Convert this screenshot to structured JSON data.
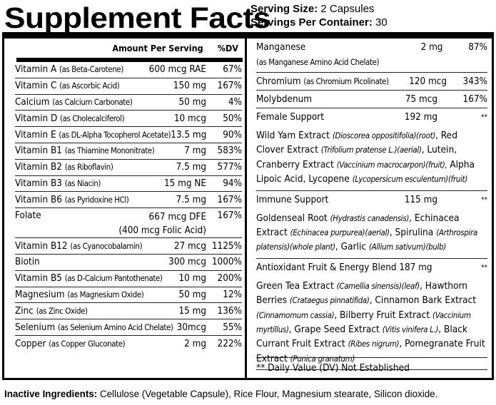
{
  "title": "Supplement Facts",
  "serving": {
    "size_label": "Serving Size:",
    "size": " 2 Capsules",
    "per_label": "Servings Per Container:",
    "per": " 30"
  },
  "header": {
    "amount": "Amount Per Serving",
    "dv": "%DV"
  },
  "left_rows": [
    {
      "name": "Vitamin A",
      "sub": "(as Beta-Carotene)",
      "amount": "600 mcg RAE",
      "dv": "67%"
    },
    {
      "name": "Vitamin C",
      "sub": "(as Ascorbic Acid)",
      "amount": "150 mg",
      "dv": "167%"
    },
    {
      "name": "Calcium",
      "sub": "(as Calcium Carbonate)",
      "amount": "50 mg",
      "dv": "4%"
    },
    {
      "name": "Vitamin D",
      "sub": "(as Cholecalciferol)",
      "amount": "10 mcg",
      "dv": "50%"
    },
    {
      "name": "Vitamin E",
      "sub": "(as DL-Alpha Tocopherol Acetate)",
      "amount": "13.5 mg",
      "dv": "90%"
    },
    {
      "name": "Vitamin B1",
      "sub": "(as Thiamine Mononitrate)",
      "amount": "7 mg",
      "dv": "583%"
    },
    {
      "name": "Vitamin B2",
      "sub": "(as Riboflavin)",
      "amount": "7.5 mg",
      "dv": "577%"
    },
    {
      "name": "Vitamin B3",
      "sub": "(as Niacin)",
      "amount": "15 mg NE",
      "dv": "94%"
    },
    {
      "name": "Vitamin B6",
      "sub": "(as Pyridoxine HCl)",
      "amount": "7.5 mg",
      "dv": "167%"
    },
    {
      "name": "Folate",
      "sub": "",
      "amount": "667 mcg DFE",
      "amount2": "(400 mcg Folic Acid)",
      "dv": "167%"
    },
    {
      "name": "Vitamin B12",
      "sub": "(as Cyanocobalamin)",
      "amount": "27 mcg",
      "dv": "1125%"
    },
    {
      "name": "Biotin",
      "sub": "",
      "amount": "300 mcg",
      "dv": "1000%"
    },
    {
      "name": "Vitamin B5",
      "sub": "(as D-Calcium Pantothenate)",
      "amount": "10 mg",
      "dv": "200%"
    },
    {
      "name": "Magnesium",
      "sub": "(as Magnesium Oxide)",
      "amount": "50 mg",
      "dv": "12%"
    },
    {
      "name": "Zinc",
      "sub": "(as Zinc Oxide)",
      "amount": "15 mg",
      "dv": "136%"
    },
    {
      "name": "Selenium",
      "sub": "(as Selenium Amino Acid Chelate)",
      "amount": "30mcg",
      "dv": "55%"
    },
    {
      "name": "Copper",
      "sub": "(as Copper Gluconate)",
      "amount": "2 mg",
      "dv": "222%"
    }
  ],
  "right_blocks": [
    {
      "name": "Manganese",
      "sub": "(as Manganese Amino Acid Chelate)",
      "amount": "2 mg",
      "dv": "87%",
      "two": true
    },
    {
      "name": "Chromium",
      "sub": "(as Chromium Picolinate)",
      "amount": "120 mcg",
      "dv": "343%"
    },
    {
      "name": "Molybdenum",
      "sub": "",
      "amount": "75 mcg",
      "dv": "167%"
    },
    {
      "name": "Female Support",
      "sub": "",
      "amount": "192 mg",
      "dv": "**",
      "desc": [
        {
          "t": "Wild Yam Extract "
        },
        {
          "t": "(Dioscorea oppositifolia)(root)",
          "i": true
        },
        {
          "t": ", Red Clover Extract "
        },
        {
          "t": "(Trifolium pratense L.)(aerial)",
          "i": true
        },
        {
          "t": ", Lutein, Cranberry Extract "
        },
        {
          "t": "(Vaccinium macrocarpon)(fruit),",
          "i": true
        },
        {
          "t": " Alpha Lipoic Acid, Lycopene "
        },
        {
          "t": "(Lycopersicum esculentum)(fruit)",
          "i": true
        }
      ]
    },
    {
      "name": "Immune Support",
      "sub": "",
      "amount": "115 mg",
      "dv": "**",
      "desc": [
        {
          "t": "Goldenseal Root "
        },
        {
          "t": "(Hydrastis canadensis)",
          "i": true
        },
        {
          "t": ", Echinacea Extract "
        },
        {
          "t": "(Echinacea purpurea)(aerial)",
          "i": true
        },
        {
          "t": ", Spirulina "
        },
        {
          "t": "(Arthrospira platensis)(whole plant)",
          "i": true
        },
        {
          "t": ", Garlic "
        },
        {
          "t": "(Allium sativum)(bulb)",
          "i": true
        }
      ]
    },
    {
      "name": "Antioxidant Fruit & Energy Blend 187 mg",
      "sub": "",
      "amount": "",
      "dv": "**",
      "desc": [
        {
          "t": "Green Tea Extract "
        },
        {
          "t": "(Camellia sinensis)(leaf)",
          "i": true
        },
        {
          "t": ", Hawthorn Berries "
        },
        {
          "t": "(Crataegus pinnatifida)",
          "i": true
        },
        {
          "t": ", Cinnamon Bark Extract "
        },
        {
          "t": "(Cinnamomum cassia)",
          "i": true
        },
        {
          "t": ", Bilberry Fruit Extract "
        },
        {
          "t": "(Vaccinium myrtillus)",
          "i": true
        },
        {
          "t": ", Grape Seed Extract "
        },
        {
          "t": "(Vitis vinifera L.)",
          "i": true
        },
        {
          "t": ", Black Currant Fruit Extract "
        },
        {
          "t": "(Ribes nigrum)",
          "i": true
        },
        {
          "t": ", Pomegranate Fruit Extract "
        },
        {
          "t": "(Punica granatum)",
          "i": true
        }
      ]
    }
  ],
  "footnote": "** Daily Value (DV) Not Established",
  "inactive": {
    "label": "Inactive Ingredients:",
    "text": " Cellulose (Vegetable Capsule), Rice Flour, Magnesium stearate, Silicon dioxide."
  }
}
